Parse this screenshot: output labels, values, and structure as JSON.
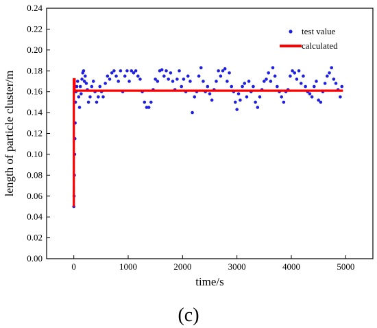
{
  "panel_label": "(c)",
  "chart_data": {
    "type": "scatter",
    "xlabel": "time/s",
    "ylabel": "length of particle cluster/m",
    "xlim": [
      -500,
      5500
    ],
    "ylim": [
      0.0,
      0.24
    ],
    "xticks": [
      0,
      1000,
      2000,
      3000,
      4000,
      5000
    ],
    "yticks": [
      0.0,
      0.02,
      0.04,
      0.06,
      0.08,
      0.1,
      0.12,
      0.14,
      0.16,
      0.18,
      0.2,
      0.22,
      0.24
    ],
    "legend_position": "top-right",
    "series": [
      {
        "name": "test value",
        "kind": "scatter",
        "color": "#1f1fe0",
        "points": [
          [
            0,
            0.05
          ],
          [
            5,
            0.06
          ],
          [
            10,
            0.08
          ],
          [
            15,
            0.1
          ],
          [
            20,
            0.115
          ],
          [
            25,
            0.13
          ],
          [
            30,
            0.15
          ],
          [
            40,
            0.16
          ],
          [
            55,
            0.165
          ],
          [
            70,
            0.17
          ],
          [
            90,
            0.155
          ],
          [
            105,
            0.145
          ],
          [
            120,
            0.165
          ],
          [
            135,
            0.158
          ],
          [
            150,
            0.172
          ],
          [
            165,
            0.178
          ],
          [
            180,
            0.18
          ],
          [
            195,
            0.17
          ],
          [
            210,
            0.175
          ],
          [
            230,
            0.168
          ],
          [
            250,
            0.162
          ],
          [
            270,
            0.15
          ],
          [
            300,
            0.155
          ],
          [
            330,
            0.165
          ],
          [
            360,
            0.17
          ],
          [
            390,
            0.16
          ],
          [
            420,
            0.15
          ],
          [
            450,
            0.155
          ],
          [
            480,
            0.165
          ],
          [
            510,
            0.16
          ],
          [
            540,
            0.155
          ],
          [
            580,
            0.168
          ],
          [
            620,
            0.175
          ],
          [
            660,
            0.172
          ],
          [
            700,
            0.178
          ],
          [
            740,
            0.18
          ],
          [
            780,
            0.175
          ],
          [
            820,
            0.17
          ],
          [
            860,
            0.18
          ],
          [
            900,
            0.16
          ],
          [
            940,
            0.175
          ],
          [
            980,
            0.18
          ],
          [
            1020,
            0.17
          ],
          [
            1060,
            0.18
          ],
          [
            1100,
            0.178
          ],
          [
            1140,
            0.18
          ],
          [
            1180,
            0.175
          ],
          [
            1220,
            0.172
          ],
          [
            1260,
            0.16
          ],
          [
            1300,
            0.15
          ],
          [
            1340,
            0.145
          ],
          [
            1380,
            0.145
          ],
          [
            1420,
            0.15
          ],
          [
            1460,
            0.162
          ],
          [
            1500,
            0.172
          ],
          [
            1540,
            0.17
          ],
          [
            1580,
            0.18
          ],
          [
            1620,
            0.181
          ],
          [
            1660,
            0.175
          ],
          [
            1700,
            0.18
          ],
          [
            1740,
            0.172
          ],
          [
            1780,
            0.178
          ],
          [
            1820,
            0.17
          ],
          [
            1860,
            0.162
          ],
          [
            1900,
            0.172
          ],
          [
            1940,
            0.18
          ],
          [
            1980,
            0.165
          ],
          [
            2020,
            0.172
          ],
          [
            2060,
            0.16
          ],
          [
            2100,
            0.175
          ],
          [
            2140,
            0.17
          ],
          [
            2180,
            0.14
          ],
          [
            2220,
            0.155
          ],
          [
            2260,
            0.16
          ],
          [
            2300,
            0.175
          ],
          [
            2340,
            0.183
          ],
          [
            2380,
            0.17
          ],
          [
            2420,
            0.16
          ],
          [
            2460,
            0.165
          ],
          [
            2500,
            0.158
          ],
          [
            2540,
            0.152
          ],
          [
            2580,
            0.162
          ],
          [
            2620,
            0.17
          ],
          [
            2660,
            0.18
          ],
          [
            2700,
            0.175
          ],
          [
            2740,
            0.18
          ],
          [
            2780,
            0.182
          ],
          [
            2820,
            0.17
          ],
          [
            2860,
            0.178
          ],
          [
            2900,
            0.165
          ],
          [
            2940,
            0.16
          ],
          [
            2970,
            0.15
          ],
          [
            3000,
            0.143
          ],
          [
            3030,
            0.158
          ],
          [
            3060,
            0.152
          ],
          [
            3100,
            0.165
          ],
          [
            3140,
            0.168
          ],
          [
            3180,
            0.155
          ],
          [
            3220,
            0.17
          ],
          [
            3260,
            0.16
          ],
          [
            3300,
            0.165
          ],
          [
            3340,
            0.15
          ],
          [
            3380,
            0.145
          ],
          [
            3420,
            0.155
          ],
          [
            3460,
            0.162
          ],
          [
            3500,
            0.17
          ],
          [
            3540,
            0.172
          ],
          [
            3580,
            0.178
          ],
          [
            3620,
            0.17
          ],
          [
            3660,
            0.183
          ],
          [
            3700,
            0.175
          ],
          [
            3740,
            0.165
          ],
          [
            3780,
            0.16
          ],
          [
            3820,
            0.155
          ],
          [
            3860,
            0.15
          ],
          [
            3900,
            0.16
          ],
          [
            3940,
            0.162
          ],
          [
            3980,
            0.175
          ],
          [
            4020,
            0.18
          ],
          [
            4060,
            0.178
          ],
          [
            4100,
            0.172
          ],
          [
            4140,
            0.18
          ],
          [
            4180,
            0.168
          ],
          [
            4220,
            0.175
          ],
          [
            4260,
            0.165
          ],
          [
            4300,
            0.16
          ],
          [
            4340,
            0.158
          ],
          [
            4380,
            0.155
          ],
          [
            4420,
            0.165
          ],
          [
            4460,
            0.17
          ],
          [
            4500,
            0.152
          ],
          [
            4540,
            0.15
          ],
          [
            4580,
            0.16
          ],
          [
            4620,
            0.168
          ],
          [
            4660,
            0.175
          ],
          [
            4700,
            0.178
          ],
          [
            4740,
            0.183
          ],
          [
            4780,
            0.172
          ],
          [
            4820,
            0.168
          ],
          [
            4860,
            0.162
          ],
          [
            4900,
            0.155
          ],
          [
            4930,
            0.165
          ]
        ]
      },
      {
        "name": "calculated",
        "kind": "line",
        "color": "#ff0000",
        "points": [
          [
            0,
            0.05
          ],
          [
            0,
            0.172
          ],
          [
            15,
            0.172
          ],
          [
            15,
            0.161
          ],
          [
            4950,
            0.161
          ]
        ]
      }
    ]
  }
}
